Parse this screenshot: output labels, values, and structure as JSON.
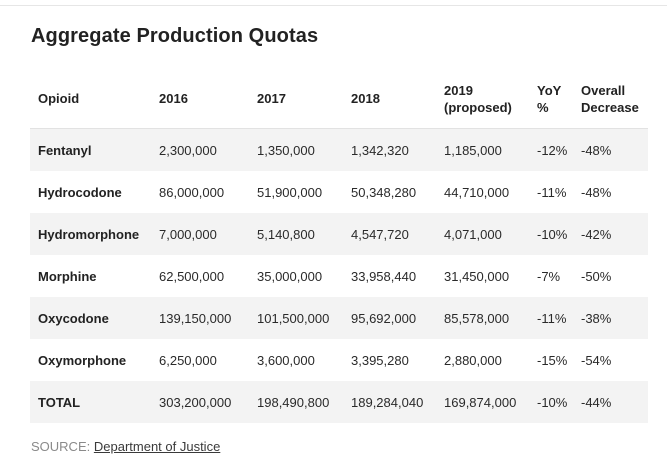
{
  "title": "Aggregate Production Quotas",
  "table": {
    "headers": [
      "Opioid",
      "2016",
      "2017",
      "2018",
      "2019\n(proposed)",
      "YoY\n%",
      "Overall\nDecrease"
    ],
    "rows": [
      [
        "Fentanyl",
        "2,300,000",
        "1,350,000",
        "1,342,320",
        "1,185,000",
        "-12%",
        "-48%"
      ],
      [
        "Hydrocodone",
        "86,000,000",
        "51,900,000",
        "50,348,280",
        "44,710,000",
        "-11%",
        "-48%"
      ],
      [
        "Hydromorphone",
        "7,000,000",
        "5,140,800",
        "4,547,720",
        "4,071,000",
        "-10%",
        "-42%"
      ],
      [
        "Morphine",
        "62,500,000",
        "35,000,000",
        "33,958,440",
        "31,450,000",
        "-7%",
        "-50%"
      ],
      [
        "Oxycodone",
        "139,150,000",
        "101,500,000",
        "95,692,000",
        "85,578,000",
        "-11%",
        "-38%"
      ],
      [
        "Oxymorphone",
        "6,250,000",
        "3,600,000",
        "3,395,280",
        "2,880,000",
        "-15%",
        "-54%"
      ],
      [
        "TOTAL",
        "303,200,000",
        "198,490,800",
        "189,284,040",
        "169,874,000",
        "-10%",
        "-44%"
      ]
    ]
  },
  "source": {
    "label": "SOURCE:",
    "link_text": "Department of Justice"
  },
  "colors": {
    "stripe": "#f3f3f3",
    "text": "#222222",
    "muted": "#8a8a8a"
  }
}
